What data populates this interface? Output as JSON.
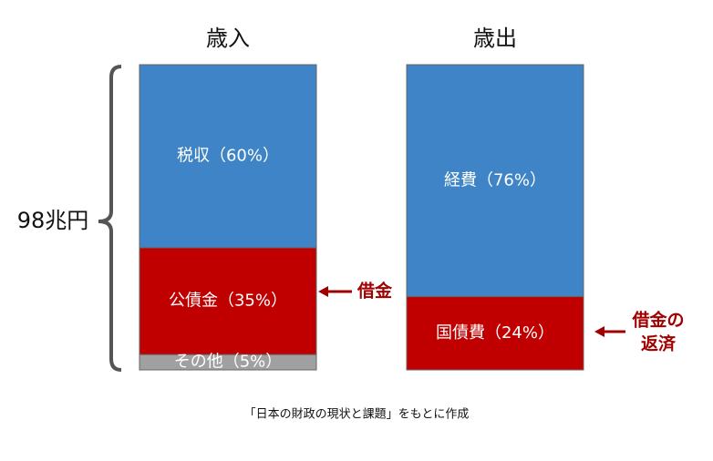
{
  "chart_data": [
    {
      "type": "bar",
      "stacked": true,
      "title": "歳入",
      "ylim": [
        0,
        100
      ],
      "series": [
        {
          "name": "税収",
          "color": "#3f84c6",
          "values": [
            60
          ],
          "value_labels": [
            "（60%）"
          ]
        },
        {
          "name": "公債金",
          "color": "#c00000",
          "values": [
            35
          ],
          "value_labels": [
            "（35%）"
          ]
        },
        {
          "name": "その他",
          "color": "#a0a0a0",
          "values": [
            5
          ],
          "value_labels": [
            "（5%）"
          ]
        }
      ]
    },
    {
      "type": "bar",
      "stacked": true,
      "title": "歳出",
      "ylim": [
        0,
        100
      ],
      "series": [
        {
          "name": "経費",
          "color": "#3f84c6",
          "values": [
            76
          ],
          "value_labels": [
            "（76%）"
          ]
        },
        {
          "name": "国債費",
          "color": "#c00000",
          "values": [
            24
          ],
          "value_labels": [
            "（24%）"
          ]
        }
      ]
    }
  ],
  "annotations": {
    "total": "98兆円",
    "left_arrow": "借金",
    "right_arrow": [
      "借金の",
      "返済"
    ]
  },
  "source": "「日本の財政の現状と課題」をもとに作成"
}
